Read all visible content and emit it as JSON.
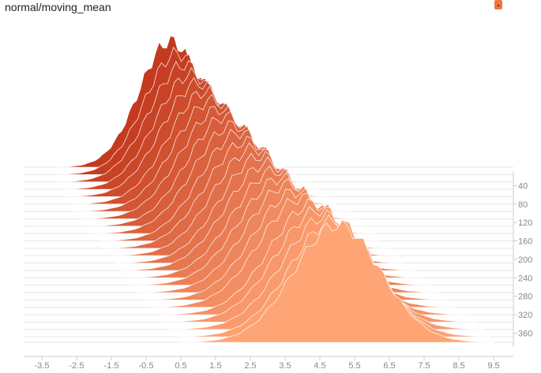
{
  "card": {
    "title": "normal/moving_mean"
  },
  "run_color": "#f37342",
  "chart_data": {
    "type": "area",
    "title": "normal/moving_mean",
    "mode": "offset histogram",
    "xlabel": "",
    "ylabel": "",
    "xlim": [
      -4.2,
      10.2
    ],
    "x_ticks": [
      "-3.5",
      "-2.5",
      "-1.5",
      "-0.5",
      "0.5",
      "1.5",
      "2.5",
      "3.5",
      "4.5",
      "5.5",
      "6.5",
      "7.5",
      "8.5",
      "9.5"
    ],
    "x_tick_values": [
      -3.5,
      -2.5,
      -1.5,
      -0.5,
      0.5,
      1.5,
      2.5,
      3.5,
      4.5,
      5.5,
      6.5,
      7.5,
      8.5,
      9.5
    ],
    "step_ticks": [
      "40",
      "80",
      "120",
      "160",
      "200",
      "240",
      "280",
      "320",
      "360"
    ],
    "step_tick_values": [
      40,
      80,
      120,
      160,
      200,
      240,
      280,
      320,
      360
    ],
    "step_range": [
      0,
      390
    ],
    "color_first_step": "#c33a1e",
    "color_last_step": "#ffa474",
    "series": [
      {
        "step": 0,
        "mean": 0.2,
        "std": 0.9,
        "peak": 1.0
      },
      {
        "step": 16,
        "mean": 0.4,
        "std": 0.95,
        "peak": 0.96
      },
      {
        "step": 32,
        "mean": 0.6,
        "std": 1.0,
        "peak": 0.93
      },
      {
        "step": 48,
        "mean": 0.8,
        "std": 1.02,
        "peak": 0.91
      },
      {
        "step": 64,
        "mean": 1.0,
        "std": 1.05,
        "peak": 0.9
      },
      {
        "step": 80,
        "mean": 1.2,
        "std": 1.05,
        "peak": 0.89
      },
      {
        "step": 96,
        "mean": 1.4,
        "std": 1.08,
        "peak": 0.88
      },
      {
        "step": 112,
        "mean": 1.6,
        "std": 1.1,
        "peak": 0.87
      },
      {
        "step": 128,
        "mean": 1.8,
        "std": 1.1,
        "peak": 0.87
      },
      {
        "step": 144,
        "mean": 2.0,
        "std": 1.12,
        "peak": 0.86
      },
      {
        "step": 160,
        "mean": 2.2,
        "std": 1.12,
        "peak": 0.86
      },
      {
        "step": 176,
        "mean": 2.4,
        "std": 1.15,
        "peak": 0.85
      },
      {
        "step": 192,
        "mean": 2.6,
        "std": 1.15,
        "peak": 0.85
      },
      {
        "step": 208,
        "mean": 2.8,
        "std": 1.15,
        "peak": 0.85
      },
      {
        "step": 224,
        "mean": 3.0,
        "std": 1.18,
        "peak": 0.85
      },
      {
        "step": 240,
        "mean": 3.2,
        "std": 1.18,
        "peak": 0.85
      },
      {
        "step": 256,
        "mean": 3.4,
        "std": 1.2,
        "peak": 0.85
      },
      {
        "step": 272,
        "mean": 3.6,
        "std": 1.2,
        "peak": 0.86
      },
      {
        "step": 288,
        "mean": 3.8,
        "std": 1.2,
        "peak": 0.86
      },
      {
        "step": 304,
        "mean": 4.0,
        "std": 1.22,
        "peak": 0.87
      },
      {
        "step": 320,
        "mean": 4.3,
        "std": 1.22,
        "peak": 0.88
      },
      {
        "step": 336,
        "mean": 4.5,
        "std": 1.25,
        "peak": 0.89
      },
      {
        "step": 352,
        "mean": 4.7,
        "std": 1.25,
        "peak": 0.9
      },
      {
        "step": 368,
        "mean": 4.9,
        "std": 1.25,
        "peak": 0.92
      },
      {
        "step": 380,
        "mean": 5.0,
        "std": 1.25,
        "peak": 0.93
      }
    ]
  }
}
